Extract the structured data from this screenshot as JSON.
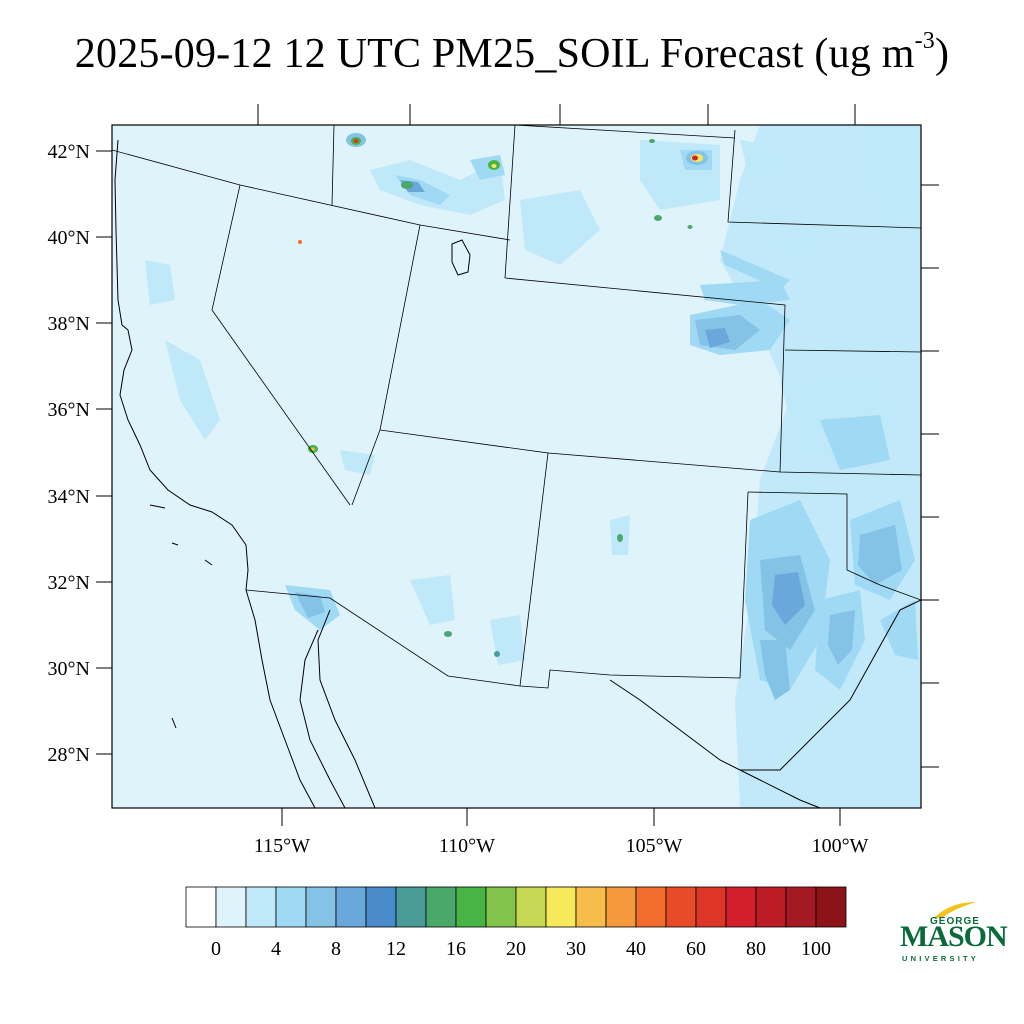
{
  "title": {
    "text": "2025-09-12 12 UTC PM25_SOIL Forecast (ug m",
    "exponent": "-3",
    "close": ")"
  },
  "map": {
    "lat_labels": [
      "42°N",
      "40°N",
      "38°N",
      "36°N",
      "34°N",
      "32°N",
      "30°N",
      "28°N"
    ],
    "lon_labels": [
      "115°W",
      "110°W",
      "105°W",
      "100°W"
    ],
    "background_color": "#dff3fb"
  },
  "colorbar": {
    "colors": [
      "#ffffff",
      "#dff3fb",
      "#bfe8f8",
      "#9fd9f4",
      "#84c2e6",
      "#6aa8dc",
      "#4a8ccb",
      "#4a9c99",
      "#4aa86a",
      "#48b444",
      "#84c44c",
      "#c6d852",
      "#f8e85c",
      "#f7bd4a",
      "#f59a3c",
      "#f26d2c",
      "#e84b28",
      "#dd3526",
      "#d21f2b",
      "#bb1c25",
      "#a31a22",
      "#8c1419"
    ],
    "tick_labels": [
      "0",
      "4",
      "8",
      "12",
      "16",
      "20",
      "30",
      "40",
      "60",
      "80",
      "100"
    ],
    "scale": "nonlinear"
  },
  "logo": {
    "line1": "GEORGE",
    "line2": "MASON",
    "line3": "UNIVERSITY",
    "color": "#0a6b3a"
  }
}
